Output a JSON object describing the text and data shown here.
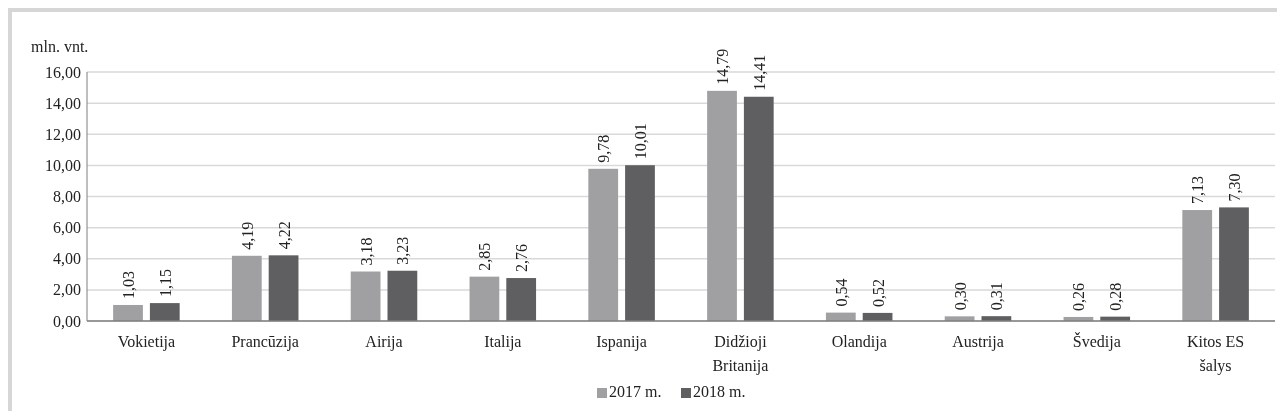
{
  "chart_data": {
    "type": "bar",
    "ylabel": "mln. vnt.",
    "categories": [
      "Vokietija",
      "Prancūzija",
      "Airija",
      "Italija",
      "Ispanija",
      "Didžioji Britanija",
      "Olandija",
      "Austrija",
      "Švedija",
      "Kitos ES šalys"
    ],
    "series": [
      {
        "name": "2017 m.",
        "color": "#a0a0a3",
        "values": [
          1.03,
          4.19,
          3.18,
          2.85,
          9.78,
          14.79,
          0.54,
          0.3,
          0.26,
          7.13
        ],
        "value_labels": [
          "1,03",
          "4,19",
          "3,18",
          "2,85",
          "9,78",
          "14,79",
          "0,54",
          "0,30",
          "0,26",
          "7,13"
        ]
      },
      {
        "name": "2018 m.",
        "color": "#5f5f62",
        "values": [
          1.15,
          4.22,
          3.23,
          2.76,
          10.01,
          14.41,
          0.52,
          0.31,
          0.28,
          7.3
        ],
        "value_labels": [
          "1,15",
          "4,22",
          "3,23",
          "2,76",
          "10,01",
          "14,41",
          "0,52",
          "0,31",
          "0,28",
          "7,30"
        ]
      }
    ],
    "ylim": [
      0,
      16
    ],
    "yticks": [
      {
        "value": 0,
        "label": "0,00"
      },
      {
        "value": 2,
        "label": "2,00"
      },
      {
        "value": 4,
        "label": "4,00"
      },
      {
        "value": 6,
        "label": "6,00"
      },
      {
        "value": 8,
        "label": "8,00"
      },
      {
        "value": 10,
        "label": "10,00"
      },
      {
        "value": 12,
        "label": "12,00"
      },
      {
        "value": 14,
        "label": "14,00"
      },
      {
        "value": 16,
        "label": "16,00"
      }
    ],
    "grid": "y",
    "legend": "bottom"
  }
}
